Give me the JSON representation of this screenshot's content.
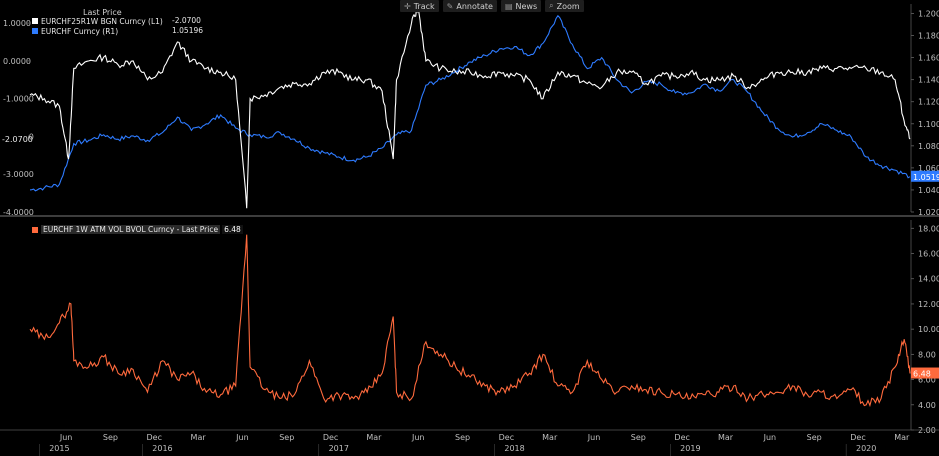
{
  "toolbar": {
    "items": [
      {
        "icon": "crosshair-icon",
        "glyph": "✛",
        "label": "Track"
      },
      {
        "icon": "pencil-icon",
        "glyph": "✎",
        "label": "Annotate"
      },
      {
        "icon": "newspaper-icon",
        "glyph": "▤",
        "label": "News"
      },
      {
        "icon": "magnifier-icon",
        "glyph": "⌕",
        "label": "Zoom"
      }
    ]
  },
  "legend_top": {
    "title": "Last Price",
    "rows": [
      {
        "label": "EURCHF25R1W BGN Curncy  (L1)",
        "value": "-2.0700",
        "color": "#ffffff"
      },
      {
        "label": "EURCHF Curncy  (R1)",
        "value": "1.05196",
        "color": "#2e7bff"
      }
    ]
  },
  "legend_bottom": {
    "label": "EURCHF 1W ATM VOL BVOL Curncy - Last Price",
    "value": "6.48",
    "color": "#ff6a3d"
  },
  "axes": {
    "top_left_ticks": [
      "1.0000",
      "0.0000",
      "-1.0000",
      "-2.0000",
      "-3.0000",
      "-4.0000"
    ],
    "top_right_ticks": [
      "1.2000",
      "1.1800",
      "1.1600",
      "1.1400",
      "1.1200",
      "1.1000",
      "1.0800",
      "1.0600",
      "1.0400",
      "1.0200"
    ],
    "bottom_right_ticks": [
      "18.00",
      "16.00",
      "14.00",
      "12.00",
      "10.00",
      "8.00",
      "6.00",
      "4.00",
      "2.00"
    ],
    "months": [
      "Jun",
      "Sep",
      "Dec",
      "Mar",
      "Jun",
      "Sep",
      "Dec",
      "Mar",
      "Jun",
      "Sep",
      "Dec",
      "Mar",
      "Jun",
      "Sep",
      "Dec",
      "Mar",
      "Jun",
      "Sep",
      "Dec",
      "Mar"
    ],
    "years": [
      "2015",
      "2016",
      "2017",
      "2018",
      "2019",
      "2020"
    ],
    "last_left_tag": "-2.0700",
    "last_right_tag": "1.05196",
    "last_vol_tag": "6.48"
  },
  "colors": {
    "background": "#000000",
    "rr": "#ffffff",
    "spot": "#2e7bff",
    "vol": "#ff6a3d",
    "tag_spot": "#2e7bff",
    "tag_vol": "#ff6a3d"
  },
  "chart_data": [
    {
      "type": "line",
      "series": [
        {
          "name": "EURCHF25R1W BGN Curncy  (L1)",
          "axis": "left",
          "x": [
            "2015-04",
            "2015-05",
            "2015-06",
            "2015-06-20",
            "2015-07",
            "2015-08",
            "2015-09",
            "2015-10",
            "2015-11",
            "2015-12",
            "2016-01",
            "2016-02",
            "2016-03",
            "2016-04",
            "2016-05",
            "2016-06",
            "2016-06-24",
            "2016-07",
            "2016-08",
            "2016-09",
            "2016-10",
            "2016-11",
            "2016-12",
            "2017-01",
            "2017-02",
            "2017-03",
            "2017-04",
            "2017-04-24",
            "2017-05",
            "2017-06",
            "2017-06-15",
            "2017-07",
            "2017-08",
            "2017-09",
            "2017-10",
            "2017-11",
            "2017-12",
            "2018-01",
            "2018-02",
            "2018-03",
            "2018-04",
            "2018-05",
            "2018-06",
            "2018-07",
            "2018-08",
            "2018-09",
            "2018-10",
            "2018-11",
            "2018-12",
            "2019-01",
            "2019-02",
            "2019-03",
            "2019-04",
            "2019-05",
            "2019-06",
            "2019-07",
            "2019-08",
            "2019-09",
            "2019-10",
            "2019-11",
            "2019-12",
            "2020-01",
            "2020-02",
            "2020-03",
            "2020-03-20",
            "2020-04"
          ],
          "values": [
            -0.9,
            -1.0,
            -1.2,
            -2.6,
            -0.2,
            0.0,
            0.1,
            -0.1,
            0.0,
            -0.5,
            -0.3,
            0.5,
            0.0,
            -0.2,
            -0.3,
            -0.5,
            -3.9,
            -1.0,
            -0.9,
            -0.7,
            -0.6,
            -0.6,
            -0.3,
            -0.3,
            -0.5,
            -0.5,
            -0.8,
            -2.6,
            -0.5,
            1.0,
            1.4,
            0.0,
            -0.2,
            -0.3,
            -0.3,
            -0.4,
            -0.3,
            -0.4,
            -0.5,
            -1.0,
            -0.3,
            -0.4,
            -0.6,
            -0.7,
            -0.3,
            -0.3,
            -0.6,
            -0.4,
            -0.4,
            -0.3,
            -0.5,
            -0.5,
            -0.4,
            -0.7,
            -0.5,
            -0.3,
            -0.3,
            -0.3,
            -0.2,
            -0.2,
            -0.2,
            -0.2,
            -0.3,
            -0.5,
            -1.6,
            -2.07
          ]
        },
        {
          "name": "EURCHF Curncy  (R1)",
          "axis": "right",
          "x": [
            "2015-04",
            "2015-05",
            "2015-06",
            "2015-07",
            "2015-08",
            "2015-09",
            "2015-10",
            "2015-11",
            "2015-12",
            "2016-01",
            "2016-02",
            "2016-03",
            "2016-04",
            "2016-05",
            "2016-06",
            "2016-07",
            "2016-08",
            "2016-09",
            "2016-10",
            "2016-11",
            "2016-12",
            "2017-01",
            "2017-02",
            "2017-03",
            "2017-04",
            "2017-05",
            "2017-06",
            "2017-07",
            "2017-08",
            "2017-09",
            "2017-10",
            "2017-11",
            "2017-12",
            "2018-01",
            "2018-02",
            "2018-03",
            "2018-04",
            "2018-05",
            "2018-06",
            "2018-07",
            "2018-08",
            "2018-09",
            "2018-10",
            "2018-11",
            "2018-12",
            "2019-01",
            "2019-02",
            "2019-03",
            "2019-04",
            "2019-05",
            "2019-06",
            "2019-07",
            "2019-08",
            "2019-09",
            "2019-10",
            "2019-11",
            "2019-12",
            "2020-01",
            "2020-02",
            "2020-03",
            "2020-04"
          ],
          "values": [
            1.04,
            1.042,
            1.045,
            1.082,
            1.085,
            1.09,
            1.086,
            1.089,
            1.085,
            1.092,
            1.106,
            1.094,
            1.1,
            1.108,
            1.096,
            1.09,
            1.088,
            1.092,
            1.086,
            1.078,
            1.074,
            1.07,
            1.067,
            1.07,
            1.078,
            1.09,
            1.094,
            1.135,
            1.14,
            1.148,
            1.156,
            1.162,
            1.168,
            1.17,
            1.162,
            1.173,
            1.198,
            1.172,
            1.15,
            1.16,
            1.14,
            1.128,
            1.138,
            1.136,
            1.128,
            1.128,
            1.136,
            1.13,
            1.14,
            1.128,
            1.11,
            1.096,
            1.088,
            1.092,
            1.1,
            1.094,
            1.088,
            1.07,
            1.062,
            1.058,
            1.052
          ]
        }
      ],
      "left_ylim": [
        -4.0,
        1.4
      ],
      "right_ylim": [
        1.02,
        1.205
      ],
      "xlim": [
        "2015-04",
        "2020-04"
      ],
      "grid": false,
      "legend": "top-left"
    },
    {
      "type": "line",
      "series": [
        {
          "name": "EURCHF 1W ATM VOL BVOL Curncy - Last Price",
          "axis": "right",
          "x": [
            "2015-04",
            "2015-05",
            "2015-06",
            "2015-06-25",
            "2015-07",
            "2015-08",
            "2015-09",
            "2015-10",
            "2015-11",
            "2015-12",
            "2016-01",
            "2016-02",
            "2016-03",
            "2016-04",
            "2016-05",
            "2016-06",
            "2016-06-24",
            "2016-07",
            "2016-08",
            "2016-09",
            "2016-10",
            "2016-11",
            "2016-12",
            "2017-01",
            "2017-02",
            "2017-03",
            "2017-04",
            "2017-04-24",
            "2017-05",
            "2017-06",
            "2017-07",
            "2017-08",
            "2017-09",
            "2017-10",
            "2017-11",
            "2017-12",
            "2018-01",
            "2018-02",
            "2018-03",
            "2018-04",
            "2018-05",
            "2018-06",
            "2018-07",
            "2018-08",
            "2018-09",
            "2018-10",
            "2018-11",
            "2018-12",
            "2019-01",
            "2019-02",
            "2019-03",
            "2019-04",
            "2019-05",
            "2019-06",
            "2019-07",
            "2019-08",
            "2019-09",
            "2019-10",
            "2019-11",
            "2019-12",
            "2020-01",
            "2020-02",
            "2020-03",
            "2020-03-20",
            "2020-04"
          ],
          "values": [
            10.0,
            9.2,
            10.5,
            12.0,
            7.5,
            7.0,
            7.8,
            6.5,
            6.8,
            5.0,
            7.5,
            6.0,
            6.5,
            5.0,
            4.8,
            5.5,
            17.5,
            7.0,
            5.2,
            4.5,
            4.8,
            7.5,
            4.5,
            4.8,
            4.5,
            5.0,
            6.5,
            11.0,
            5.0,
            4.5,
            9.0,
            8.0,
            7.0,
            6.2,
            5.5,
            5.0,
            5.5,
            6.5,
            8.0,
            5.5,
            5.0,
            7.5,
            6.0,
            5.0,
            5.5,
            5.2,
            5.0,
            4.8,
            4.5,
            4.8,
            5.0,
            5.5,
            4.5,
            4.8,
            5.0,
            5.5,
            4.8,
            5.0,
            4.5,
            5.2,
            4.0,
            4.5,
            7.0,
            9.2,
            6.48
          ]
        }
      ],
      "ylim": [
        2.0,
        18.5
      ],
      "xlim": [
        "2015-04",
        "2020-04"
      ],
      "grid": false,
      "legend": "top-left"
    }
  ]
}
